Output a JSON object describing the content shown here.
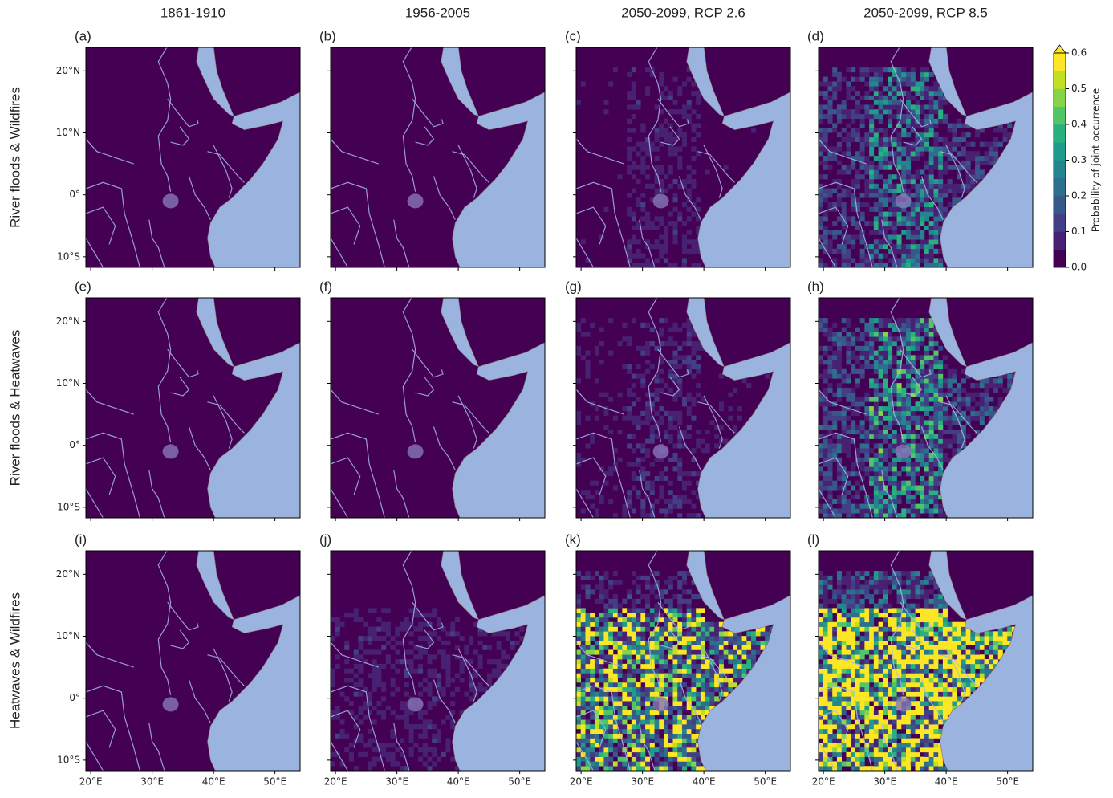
{
  "columns": [
    "1861-1910",
    "1956-2005",
    "2050-2099, RCP 2.6",
    "2050-2099, RCP 8.5"
  ],
  "rows": [
    "River floods & Wildfires",
    "River floods & Heatwaves",
    "Heatwaves & Wildfires"
  ],
  "panels": [
    "(a)",
    "(b)",
    "(c)",
    "(d)",
    "(e)",
    "(f)",
    "(g)",
    "(h)",
    "(i)",
    "(j)",
    "(k)",
    "(l)"
  ],
  "lon_range": [
    19.2,
    54.1
  ],
  "lat_range": [
    -11.7,
    23.8
  ],
  "lat_ticks": [
    {
      "value": -10,
      "label": "10°S"
    },
    {
      "value": 0,
      "label": "0°"
    },
    {
      "value": 10,
      "label": "10°N"
    },
    {
      "value": 20,
      "label": "20°N"
    }
  ],
  "lon_ticks": [
    {
      "value": 20,
      "label": "20°E"
    },
    {
      "value": 30,
      "label": "30°E"
    },
    {
      "value": 40,
      "label": "40°E"
    },
    {
      "value": 50,
      "label": "50°E"
    }
  ],
  "colorbar": {
    "label": "Probability of joint occurrence",
    "range": [
      0,
      0.6
    ],
    "ticks": [
      {
        "value": 0,
        "label": "0.0"
      },
      0.1,
      0.2,
      0.3,
      0.4,
      0.5,
      0.6
    ]
  }
}
